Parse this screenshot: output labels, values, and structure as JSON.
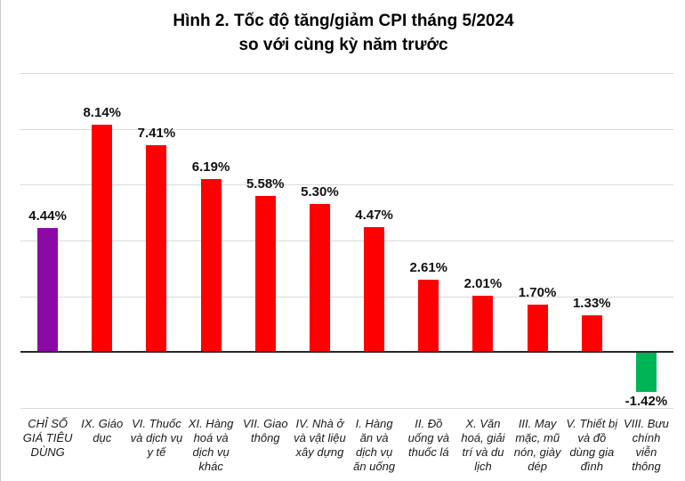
{
  "figure": {
    "title_line1": "Hình 2. Tốc độ tăng/giảm CPI tháng 5/2024",
    "title_line2": "so với cùng kỳ năm trước"
  },
  "chart_data": {
    "type": "bar",
    "title": "Hình 2. Tốc độ tăng/giảm CPI tháng 5/2024 so với cùng kỳ năm trước",
    "title_lines": [
      "Hình 2. Tốc độ tăng/giảm CPI tháng 5/2024",
      "so với cùng kỳ năm trước"
    ],
    "unit": "%",
    "categories": [
      "CHỈ SỐ GIÁ TIÊU DÙNG",
      "IX. Giáo dục",
      "VI. Thuốc và dịch vụ y tế",
      "XI. Hàng hoá và dịch vụ khác",
      "VII. Giao thông",
      "IV. Nhà ở và vật liệu xây dựng",
      "I. Hàng ăn và dịch vụ ăn uống",
      "II. Đồ uống và thuốc lá",
      "X. Văn hoá, giải trí và du lịch",
      "III. May mặc, mũ nón, giày dép",
      "V. Thiết bị và đồ dùng gia đình",
      "VIII. Bưu chính viễn thông"
    ],
    "values": [
      4.44,
      8.14,
      7.41,
      6.19,
      5.58,
      5.3,
      4.47,
      2.61,
      2.01,
      1.7,
      1.33,
      -1.42
    ],
    "value_labels": [
      "4.44%",
      "8.14%",
      "7.41%",
      "6.19%",
      "5.58%",
      "5.30%",
      "4.47%",
      "2.61%",
      "2.01%",
      "1.70%",
      "1.33%",
      "-1.42%"
    ],
    "bar_colors": [
      "#8B0AA5",
      "#FE0000",
      "#FE0000",
      "#FE0000",
      "#FE0000",
      "#FE0000",
      "#FE0000",
      "#FE0000",
      "#FE0000",
      "#FE0000",
      "#FE0000",
      "#00B556"
    ],
    "colors": {
      "cpi_total": "#8B0AA5",
      "increase": "#FE0000",
      "decrease": "#00B556",
      "gridline": "#d9d9d9",
      "zero_axis": "#262626"
    },
    "ylim": [
      -2,
      10
    ],
    "grid_step": 2,
    "grid": true,
    "legend": "none",
    "xlabel": "",
    "ylabel": ""
  }
}
